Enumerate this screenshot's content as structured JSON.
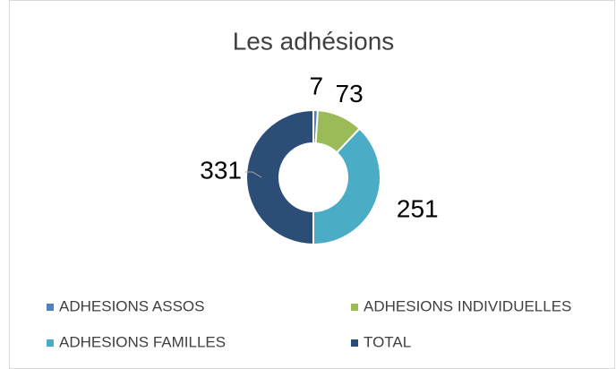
{
  "chart_data": {
    "type": "donut",
    "title": "Les adhésions",
    "categories": [
      "ADHESIONS ASSOS",
      "ADHESIONS INDIVIDUELLES",
      "ADHESIONS FAMILLES",
      "TOTAL"
    ],
    "values": [
      7,
      73,
      251,
      331
    ],
    "colors": [
      "#4f81bd",
      "#9bbb59",
      "#4bacc6",
      "#2c4d75"
    ],
    "legend": "bottom"
  }
}
